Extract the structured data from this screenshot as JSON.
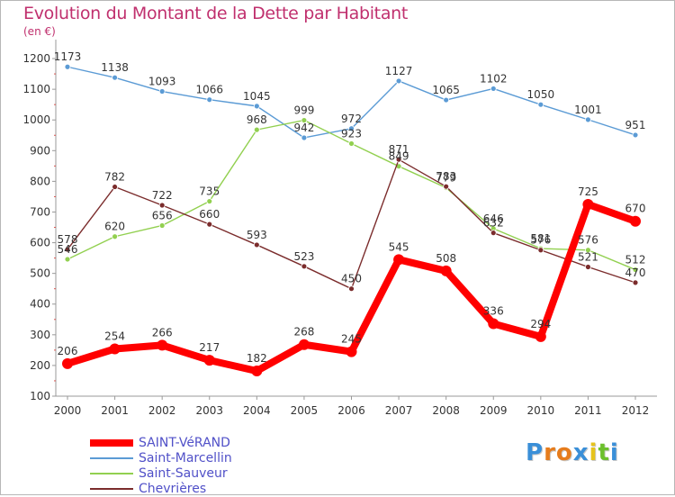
{
  "title": "Evolution du Montant de la Dette par Habitant",
  "unit": "(en €)",
  "logo": {
    "letters": [
      "P",
      "r",
      "o",
      "x",
      "i",
      "t",
      "i"
    ],
    "colors": [
      "#3a8fd8",
      "#e67c1c",
      "#e67c1c",
      "#3a8fd8",
      "#e6c31c",
      "#6cc02c",
      "#3a8fd8"
    ]
  },
  "chart_data": {
    "type": "line",
    "x": [
      "2000",
      "2001",
      "2002",
      "2003",
      "2004",
      "2005",
      "2006",
      "2007",
      "2008",
      "2009",
      "2010",
      "2011",
      "2012"
    ],
    "yticks": [
      100,
      200,
      300,
      400,
      500,
      600,
      700,
      800,
      900,
      1000,
      1100,
      1200
    ],
    "ylim": [
      100,
      1250
    ],
    "grid": false,
    "legend_position": "bottom-left",
    "series": [
      {
        "name": "SAINT-VéRAND",
        "color": "#ff0000",
        "values": [
          206,
          254,
          266,
          217,
          182,
          268,
          245,
          545,
          508,
          336,
          294,
          725,
          670
        ],
        "labels": [
          "206",
          "254",
          "266",
          "217",
          "182",
          "268",
          "245",
          "545",
          "508",
          "336",
          "294",
          "725",
          "670"
        ]
      },
      {
        "name": "Saint-Marcellin",
        "color": "#5b9bd5",
        "values": [
          1173,
          1138,
          1093,
          1066,
          1045,
          942,
          972,
          1127,
          1065,
          1102,
          1050,
          1001,
          951
        ],
        "labels": [
          "1173",
          "1138",
          "1093",
          "1066",
          "1045",
          "942",
          "972",
          "1127",
          "1065",
          "1102",
          "1050",
          "1001",
          "951"
        ]
      },
      {
        "name": "Saint-Sauveur",
        "color": "#92d050",
        "values": [
          546,
          620,
          656,
          735,
          968,
          999,
          923,
          849,
          779,
          646,
          581,
          576,
          512
        ],
        "labels": [
          "546",
          "620",
          "656",
          "735",
          "968",
          "999",
          "923",
          "849",
          "779",
          "646",
          "581",
          "576",
          "512"
        ]
      },
      {
        "name": "Chevrières",
        "color": "#7b2c2c",
        "values": [
          578,
          782,
          722,
          660,
          593,
          523,
          450,
          871,
          783,
          632,
          576,
          521,
          470
        ],
        "labels": [
          "578",
          "782",
          "722",
          "660",
          "593",
          "523",
          "450",
          "871",
          "783",
          "632",
          "576",
          "521",
          "470"
        ]
      }
    ]
  }
}
